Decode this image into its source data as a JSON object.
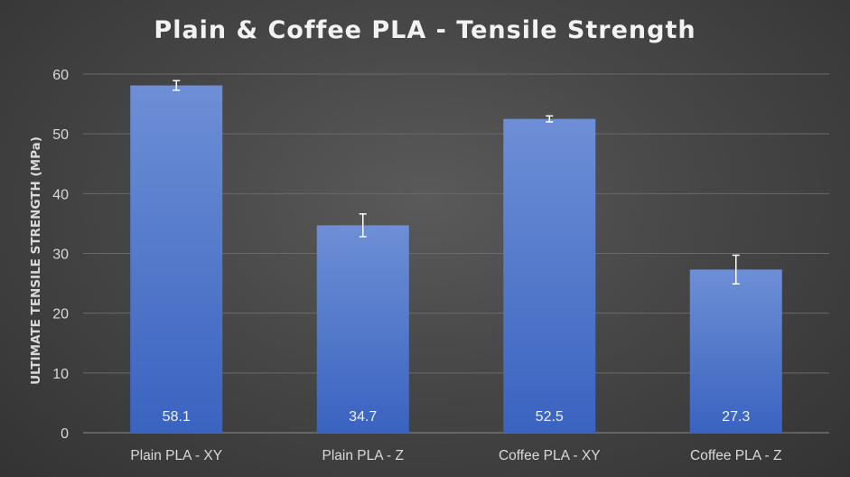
{
  "chart_data": {
    "type": "bar",
    "title": "Plain & Coffee PLA - Tensile Strength",
    "xlabel": "",
    "ylabel": "ULTIMATE TENSILE STRENGTH (MPa)",
    "categories": [
      "Plain PLA - XY",
      "Plain PLA - Z",
      "Coffee PLA - XY",
      "Coffee PLA - Z"
    ],
    "values": [
      58.1,
      34.7,
      52.5,
      27.3
    ],
    "data_labels": [
      "58.1",
      "34.7",
      "52.5",
      "27.3"
    ],
    "error": [
      0.8,
      1.9,
      0.5,
      2.4
    ],
    "ylim": [
      0,
      60
    ],
    "yticks": [
      0,
      10,
      20,
      30,
      40,
      50,
      60
    ],
    "grid": true,
    "legend": "none",
    "colors": {
      "bar_top": "#6e8fd6",
      "bar_bottom": "#3a63c0",
      "background": "#474747",
      "text": "#d9d9d9"
    }
  }
}
